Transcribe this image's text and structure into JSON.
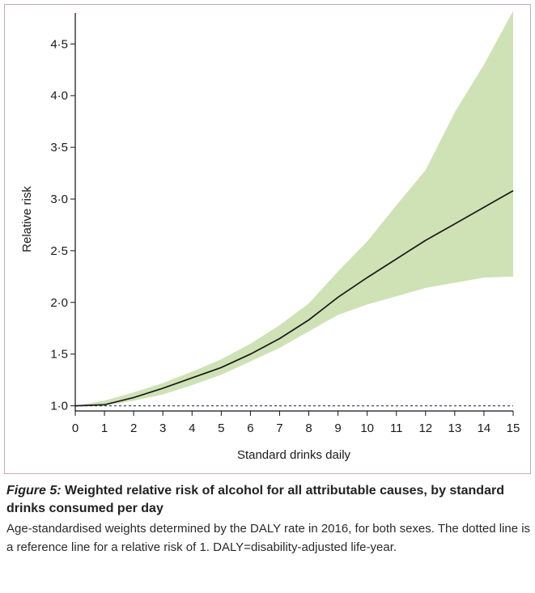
{
  "colors": {
    "band": "#cfe2b6",
    "line": "#1a1a1a",
    "reference": "#3c4a6b"
  },
  "chart_data": {
    "type": "line",
    "xlabel": "Standard drinks daily",
    "ylabel": "Relative risk",
    "xlim": [
      0,
      15
    ],
    "ylim": [
      0.95,
      4.8
    ],
    "x_ticks": [
      0,
      1,
      2,
      3,
      4,
      5,
      6,
      7,
      8,
      9,
      10,
      11,
      12,
      13,
      14,
      15
    ],
    "x_tick_labels": [
      "0",
      "1",
      "2",
      "3",
      "4",
      "5",
      "6",
      "7",
      "8",
      "9",
      "10",
      "11",
      "12",
      "13",
      "14",
      "15"
    ],
    "y_ticks": [
      1.0,
      1.5,
      2.0,
      2.5,
      3.0,
      3.5,
      4.0,
      4.5
    ],
    "y_tick_labels": [
      "1·0",
      "1·5",
      "2·0",
      "2·5",
      "3·0",
      "3·5",
      "4·0",
      "4·5"
    ],
    "reference_line": {
      "y": 1.0,
      "style": "dotted"
    },
    "series": [
      {
        "type": "line",
        "x": [
          0,
          1,
          2,
          3,
          4,
          5,
          6,
          7,
          8,
          9,
          10,
          11,
          12,
          13,
          14,
          15
        ],
        "y": [
          1.0,
          1.01,
          1.08,
          1.17,
          1.27,
          1.37,
          1.5,
          1.65,
          1.83,
          2.05,
          2.24,
          2.42,
          2.6,
          2.76,
          2.92,
          3.08
        ]
      },
      {
        "type": "band",
        "x": [
          0,
          1,
          2,
          3,
          4,
          5,
          6,
          7,
          8,
          9,
          10,
          11,
          12,
          13,
          14,
          15
        ],
        "lower": [
          1.0,
          1.0,
          1.05,
          1.11,
          1.2,
          1.3,
          1.43,
          1.56,
          1.72,
          1.88,
          1.98,
          2.06,
          2.14,
          2.19,
          2.24,
          2.25
        ],
        "upper": [
          1.0,
          1.05,
          1.13,
          1.22,
          1.33,
          1.45,
          1.6,
          1.78,
          1.99,
          2.3,
          2.59,
          2.94,
          3.28,
          3.84,
          4.3,
          4.82
        ]
      }
    ]
  },
  "caption": {
    "figure_label": "Figure 5:",
    "title": "Weighted relative risk of alcohol for all attributable causes, by standard drinks consumed per day",
    "body": "Age-standardised weights determined by the DALY rate in 2016, for both sexes. The dotted line is a reference line for a relative risk of 1. DALY=disability-adjusted life-year."
  }
}
